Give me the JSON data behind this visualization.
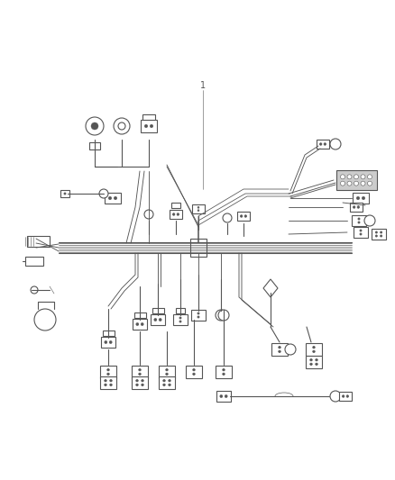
{
  "bg_color": "#ffffff",
  "lc": "#555555",
  "lw": 0.8,
  "figsize": [
    4.38,
    5.33
  ],
  "dpi": 100
}
